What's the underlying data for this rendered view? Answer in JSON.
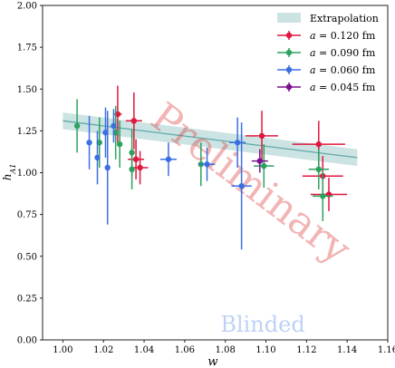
{
  "chart_data": {
    "type": "scatter",
    "xlabel": "w",
    "ylabel": "h_A1",
    "xlim": [
      0.99,
      1.16
    ],
    "ylim": [
      0.0,
      2.0
    ],
    "xticks": [
      "1.00",
      "1.02",
      "1.04",
      "1.06",
      "1.08",
      "1.10",
      "1.12",
      "1.14",
      "1.16"
    ],
    "yticks": [
      "0.00",
      "0.25",
      "0.50",
      "0.75",
      "1.00",
      "1.25",
      "1.50",
      "1.75",
      "2.00"
    ],
    "grid": false,
    "legend_position": "top-right",
    "watermarks": {
      "main": "Preliminary",
      "secondary": "Blinded"
    },
    "band": {
      "name": "Extrapolation",
      "color": "#5fa8a8",
      "x": [
        1.0,
        1.145
      ],
      "y_center": [
        1.31,
        1.09
      ],
      "half_width": 0.05
    },
    "series": [
      {
        "name": "a = 0.120 fm",
        "a_value": "a = 0.120 fm",
        "a_symbol": "a",
        "a_rest": " = 0.120 fm",
        "color": "#e0173e",
        "points": [
          {
            "x": 1.027,
            "y": 1.35,
            "yerr": 0.17,
            "xerr": 0.002
          },
          {
            "x": 1.035,
            "y": 1.31,
            "yerr": 0.17,
            "xerr": 0.004
          },
          {
            "x": 1.036,
            "y": 1.08,
            "yerr": 0.12,
            "xerr": 0.004
          },
          {
            "x": 1.038,
            "y": 1.03,
            "yerr": 0.1,
            "xerr": 0.004
          },
          {
            "x": 1.098,
            "y": 1.22,
            "yerr": 0.15,
            "xerr": 0.008
          },
          {
            "x": 1.126,
            "y": 1.17,
            "yerr": 0.14,
            "xerr": 0.013
          },
          {
            "x": 1.128,
            "y": 0.98,
            "yerr": 0.12,
            "xerr": 0.01
          },
          {
            "x": 1.131,
            "y": 0.87,
            "yerr": 0.1,
            "xerr": 0.009
          }
        ]
      },
      {
        "name": "a = 0.090 fm",
        "a_value": "a = 0.090 fm",
        "a_symbol": "a",
        "a_rest": " = 0.090 fm",
        "color": "#2ca25f",
        "points": [
          {
            "x": 1.007,
            "y": 1.28,
            "yerr": 0.16,
            "xerr": 0.0
          },
          {
            "x": 1.018,
            "y": 1.18,
            "yerr": 0.15,
            "xerr": 0.0
          },
          {
            "x": 1.026,
            "y": 1.24,
            "yerr": 0.16,
            "xerr": 0.0
          },
          {
            "x": 1.028,
            "y": 1.17,
            "yerr": 0.14,
            "xerr": 0.0
          },
          {
            "x": 1.034,
            "y": 1.12,
            "yerr": 0.14,
            "xerr": 0.0
          },
          {
            "x": 1.034,
            "y": 1.02,
            "yerr": 0.12,
            "xerr": 0.0
          },
          {
            "x": 1.068,
            "y": 1.05,
            "yerr": 0.13,
            "xerr": 0.0
          },
          {
            "x": 1.099,
            "y": 1.04,
            "yerr": 0.13,
            "xerr": 0.005
          },
          {
            "x": 1.126,
            "y": 1.02,
            "yerr": 0.12,
            "xerr": 0.005
          },
          {
            "x": 1.128,
            "y": 0.86,
            "yerr": 0.15,
            "xerr": 0.005
          }
        ]
      },
      {
        "name": "a = 0.060 fm",
        "a_value": "a = 0.060 fm",
        "a_symbol": "a",
        "a_rest": " = 0.060 fm",
        "color": "#3b6fe0",
        "points": [
          {
            "x": 1.013,
            "y": 1.18,
            "yerr": 0.16,
            "xerr": 0.0
          },
          {
            "x": 1.017,
            "y": 1.09,
            "yerr": 0.16,
            "xerr": 0.0
          },
          {
            "x": 1.021,
            "y": 1.24,
            "yerr": 0.15,
            "xerr": 0.0
          },
          {
            "x": 1.022,
            "y": 1.03,
            "yerr": 0.34,
            "xerr": 0.0
          },
          {
            "x": 1.025,
            "y": 1.28,
            "yerr": 0.1,
            "xerr": 0.0
          },
          {
            "x": 1.052,
            "y": 1.08,
            "yerr": 0.1,
            "xerr": 0.004
          },
          {
            "x": 1.071,
            "y": 1.05,
            "yerr": 0.1,
            "xerr": 0.004
          },
          {
            "x": 1.086,
            "y": 1.18,
            "yerr": 0.15,
            "xerr": 0.004
          },
          {
            "x": 1.088,
            "y": 0.92,
            "yerr": 0.38,
            "xerr": 0.005
          }
        ]
      },
      {
        "name": "a = 0.045 fm",
        "a_value": "a = 0.045 fm",
        "a_symbol": "a",
        "a_rest": " = 0.045 fm",
        "color": "#7b0f8f",
        "points": [
          {
            "x": 1.097,
            "y": 1.07,
            "yerr": 0.07,
            "xerr": 0.004
          }
        ]
      }
    ]
  }
}
